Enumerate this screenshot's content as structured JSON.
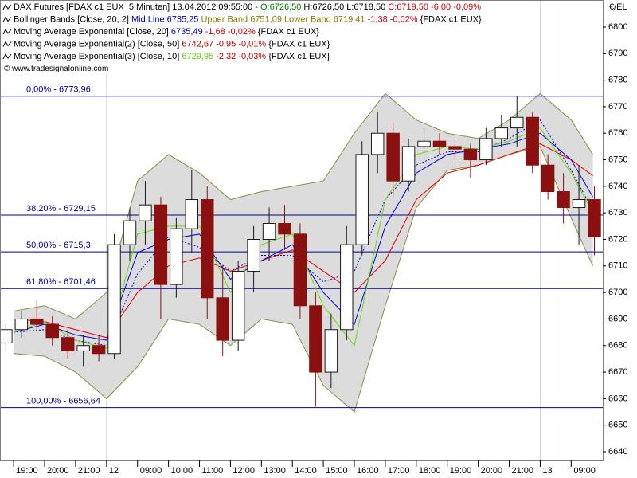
{
  "chart_data": {
    "type": "candlestick",
    "header": [
      [
        {
          "text": "DAX Futures [FDAX c1 EUX  5 Minuten] 13.04.2012 09:55:00 - ",
          "color": "#000000"
        },
        {
          "text": "O:6726,50",
          "color": "#008000"
        },
        {
          "text": " H:6726,50 L:6718,50 ",
          "color": "#000000"
        },
        {
          "text": "C:6719,50 -6,00 -0,09%",
          "color": "#cc0000"
        }
      ],
      [
        {
          "text": "Bollinger Bands [Close, 20, 2] ",
          "color": "#000000"
        },
        {
          "text": "Mid Line 6735,25 ",
          "color": "#0000c0"
        },
        {
          "text": "Upper Band 6751,09 Lower Band 6719,41 ",
          "color": "#808000"
        },
        {
          "text": "-1,38 -0,02% ",
          "color": "#cc0000"
        },
        {
          "text": "{FDAX c1 EUX}",
          "color": "#000000"
        }
      ],
      [
        {
          "text": "Moving Average Exponential [Close, 20] ",
          "color": "#000000"
        },
        {
          "text": "6735,49 ",
          "color": "#0000c0"
        },
        {
          "text": "-1,68 -0,02% ",
          "color": "#cc0000"
        },
        {
          "text": "{FDAX c1 EUX}",
          "color": "#000000"
        }
      ],
      [
        {
          "text": "Moving Average Exponential(2) [Close, 50] ",
          "color": "#000000"
        },
        {
          "text": "6742,67 ",
          "color": "#b00000"
        },
        {
          "text": "-0,95 -0,01% ",
          "color": "#cc0000"
        },
        {
          "text": "{FDAX c1 EUX}",
          "color": "#000000"
        }
      ],
      [
        {
          "text": "Moving Average Exponential(3) [Close, 10] ",
          "color": "#000000"
        },
        {
          "text": "6729,95 ",
          "color": "#66cc00"
        },
        {
          "text": "-2,32 -0,03% ",
          "color": "#cc0000"
        },
        {
          "text": "{FDAX c1 EUX}",
          "color": "#000000"
        }
      ]
    ],
    "copyright": "© www.tradesignalonline.com",
    "unit": "€/EL",
    "xlim": [
      -0.44,
      19.02
    ],
    "xticks": [
      {
        "value": 0,
        "label": "19:00"
      },
      {
        "value": 1,
        "label": "20:00"
      },
      {
        "value": 2,
        "label": "21:00"
      },
      {
        "value": 3,
        "label": "12"
      },
      {
        "value": 4,
        "label": "09:00"
      },
      {
        "value": 5,
        "label": "10:00"
      },
      {
        "value": 6,
        "label": "11:00"
      },
      {
        "value": 7,
        "label": "12:00"
      },
      {
        "value": 8,
        "label": "13:00"
      },
      {
        "value": 9,
        "label": "14:00"
      },
      {
        "value": 10,
        "label": "15:00"
      },
      {
        "value": 11,
        "label": "16:00"
      },
      {
        "value": 12,
        "label": "17:00"
      },
      {
        "value": 13,
        "label": "18:00"
      },
      {
        "value": 14,
        "label": "19:00"
      },
      {
        "value": 15,
        "label": "20:00"
      },
      {
        "value": 16,
        "label": "21:00"
      },
      {
        "value": 17,
        "label": "13"
      },
      {
        "value": 18,
        "label": "09:00"
      }
    ],
    "ylim": [
      6636.7,
      6810.2
    ],
    "yticks": [
      6640,
      6650,
      6660,
      6670,
      6680,
      6690,
      6700,
      6710,
      6720,
      6730,
      6740,
      6750,
      6760,
      6770,
      6780,
      6790,
      6800
    ],
    "candles": {
      "x": [
        -0.25,
        0.25,
        0.75,
        1.25,
        1.75,
        2.25,
        2.75,
        3.25,
        3.75,
        4.25,
        4.75,
        5.25,
        5.75,
        6.25,
        6.75,
        7.25,
        7.75,
        8.25,
        8.75,
        9.25,
        9.75,
        10.25,
        10.75,
        11.25,
        11.75,
        12.25,
        12.75,
        13.25,
        13.75,
        14.25,
        14.75,
        15.25,
        15.75,
        16.25,
        16.75,
        17.25,
        17.75,
        18.25,
        18.75
      ],
      "open": [
        6681,
        6686,
        6690,
        6688,
        6683,
        6678,
        6680,
        6677,
        6718,
        6727,
        6733,
        6703,
        6724,
        6735,
        6698,
        6682,
        6708,
        6720,
        6726,
        6722,
        6695,
        6670,
        6686,
        6718,
        6752,
        6760,
        6742,
        6755,
        6757,
        6755,
        6754,
        6750,
        6758,
        6762,
        6766,
        6748,
        6738,
        6732,
        6735
      ],
      "high": [
        6688,
        6693,
        6697,
        6691,
        6686,
        6684,
        6684,
        6722,
        6732,
        6742,
        6736,
        6728,
        6746,
        6740,
        6710,
        6712,
        6725,
        6732,
        6733,
        6726,
        6700,
        6692,
        6725,
        6757,
        6768,
        6764,
        6758,
        6762,
        6760,
        6758,
        6756,
        6762,
        6767,
        6774,
        6768,
        6752,
        6745,
        6748,
        6740
      ],
      "low": [
        6678,
        6683,
        6686,
        6680,
        6675,
        6672,
        6674,
        6675,
        6712,
        6718,
        6690,
        6698,
        6715,
        6690,
        6676,
        6678,
        6700,
        6712,
        6716,
        6690,
        6657,
        6664,
        6682,
        6714,
        6745,
        6736,
        6738,
        6750,
        6752,
        6750,
        6743,
        6748,
        6755,
        6755,
        6745,
        6735,
        6726,
        6718,
        6714
      ],
      "close": [
        6686,
        6690,
        6688,
        6683,
        6678,
        6680,
        6677,
        6718,
        6727,
        6733,
        6703,
        6724,
        6735,
        6698,
        6682,
        6708,
        6720,
        6726,
        6722,
        6695,
        6670,
        6686,
        6718,
        6752,
        6760,
        6742,
        6755,
        6757,
        6755,
        6754,
        6750,
        6758,
        6762,
        6766,
        6748,
        6738,
        6732,
        6735,
        6721
      ]
    },
    "up_color": "#1a1a1a",
    "down_color": "#8b1010",
    "line_x": [
      0,
      1,
      2,
      3,
      4,
      5,
      6,
      7,
      8,
      9,
      10,
      11,
      12,
      13,
      14,
      15,
      16,
      17,
      18,
      18.7
    ],
    "band": {
      "upper": [
        6693,
        6695,
        6690,
        6700,
        6742,
        6752,
        6745,
        6735,
        6738,
        6740,
        6742,
        6760,
        6775,
        6765,
        6760,
        6758,
        6765,
        6775,
        6765,
        6752
      ],
      "lower": [
        6677,
        6676,
        6670,
        6660,
        6672,
        6690,
        6688,
        6680,
        6690,
        6688,
        6665,
        6655,
        6695,
        6732,
        6746,
        6748,
        6752,
        6755,
        6728,
        6710
      ],
      "fill": "#dcdcdc",
      "stroke": "#8c8c46"
    },
    "lines": [
      {
        "color": "#0000e0",
        "dash": true,
        "values": [
          6685,
          6686,
          6682,
          6680,
          6707,
          6721,
          6717,
          6708,
          6714,
          6714,
          6704,
          6708,
          6735,
          6748,
          6753,
          6753,
          6758,
          6765,
          6746,
          6731
        ]
      },
      {
        "color": "#e00000",
        "dash": false,
        "values": [
          6690,
          6689,
          6686,
          6683,
          6700,
          6710,
          6713,
          6708,
          6712,
          6716,
          6708,
          6700,
          6712,
          6735,
          6745,
          6748,
          6752,
          6756,
          6750,
          6744
        ]
      },
      {
        "color": "#0000e0",
        "dash": false,
        "values": [
          6685,
          6688,
          6684,
          6682,
          6715,
          6720,
          6722,
          6705,
          6712,
          6718,
          6700,
          6688,
          6725,
          6745,
          6752,
          6754,
          6756,
          6760,
          6750,
          6736
        ]
      },
      {
        "color": "#66dd00",
        "dash": false,
        "values": [
          6685,
          6689,
          6682,
          6679,
          6722,
          6725,
          6725,
          6700,
          6718,
          6722,
          6695,
          6680,
          6735,
          6752,
          6755,
          6754,
          6757,
          6762,
          6745,
          6730
        ]
      }
    ],
    "fib_color": "#0000a0",
    "fib_levels": [
      {
        "value": 6773.96,
        "label": "0,00% - 6773,96"
      },
      {
        "value": 6729.15,
        "label": "38,20% - 6729,15"
      },
      {
        "value": 6715.3,
        "label": "50,00% - 6715,3"
      },
      {
        "value": 6701.46,
        "label": "61,80% - 6701,46"
      },
      {
        "value": 6656.64,
        "label": "100,00% - 6656,64"
      }
    ]
  }
}
